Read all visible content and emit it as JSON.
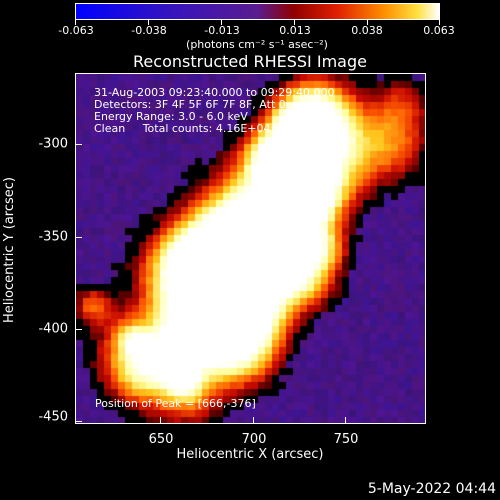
{
  "colorbar": {
    "tick_labels": [
      "-0.063",
      "-0.038",
      "-0.013",
      "0.013",
      "0.038",
      "0.063"
    ],
    "units": "(photons cm⁻² s⁻¹ asec⁻²)",
    "min": -0.063,
    "max": 0.063
  },
  "plot": {
    "title": "Reconstructed RHESSI Image",
    "xlabel": "Heliocentric X (arcsec)",
    "ylabel": "Heliocentric Y (arcsec)",
    "x_ticks": [
      "650",
      "700",
      "750"
    ],
    "y_ticks": [
      "-300",
      "-350",
      "-400",
      "-450"
    ],
    "xlim": [
      603,
      793
    ],
    "ylim": [
      -453,
      -263
    ]
  },
  "info": {
    "time_range": "31-Aug-2003 09:23:40.000 to 09:29:40.000",
    "detectors": "Detectors: 3F 4F 5F 6F 7F 8F, Att 0",
    "energy_range": "Energy Range: 3.0 - 6.0 keV",
    "method": "Clean     Total counts: 4.16E+04"
  },
  "peak_text": "Position of Peak = [666,-376]",
  "date_stamp": "5-May-2022 04:44",
  "colors": {
    "background": "#000000",
    "low": "#1010ff",
    "mid": "#6a24b4",
    "high": "#ffffff"
  }
}
